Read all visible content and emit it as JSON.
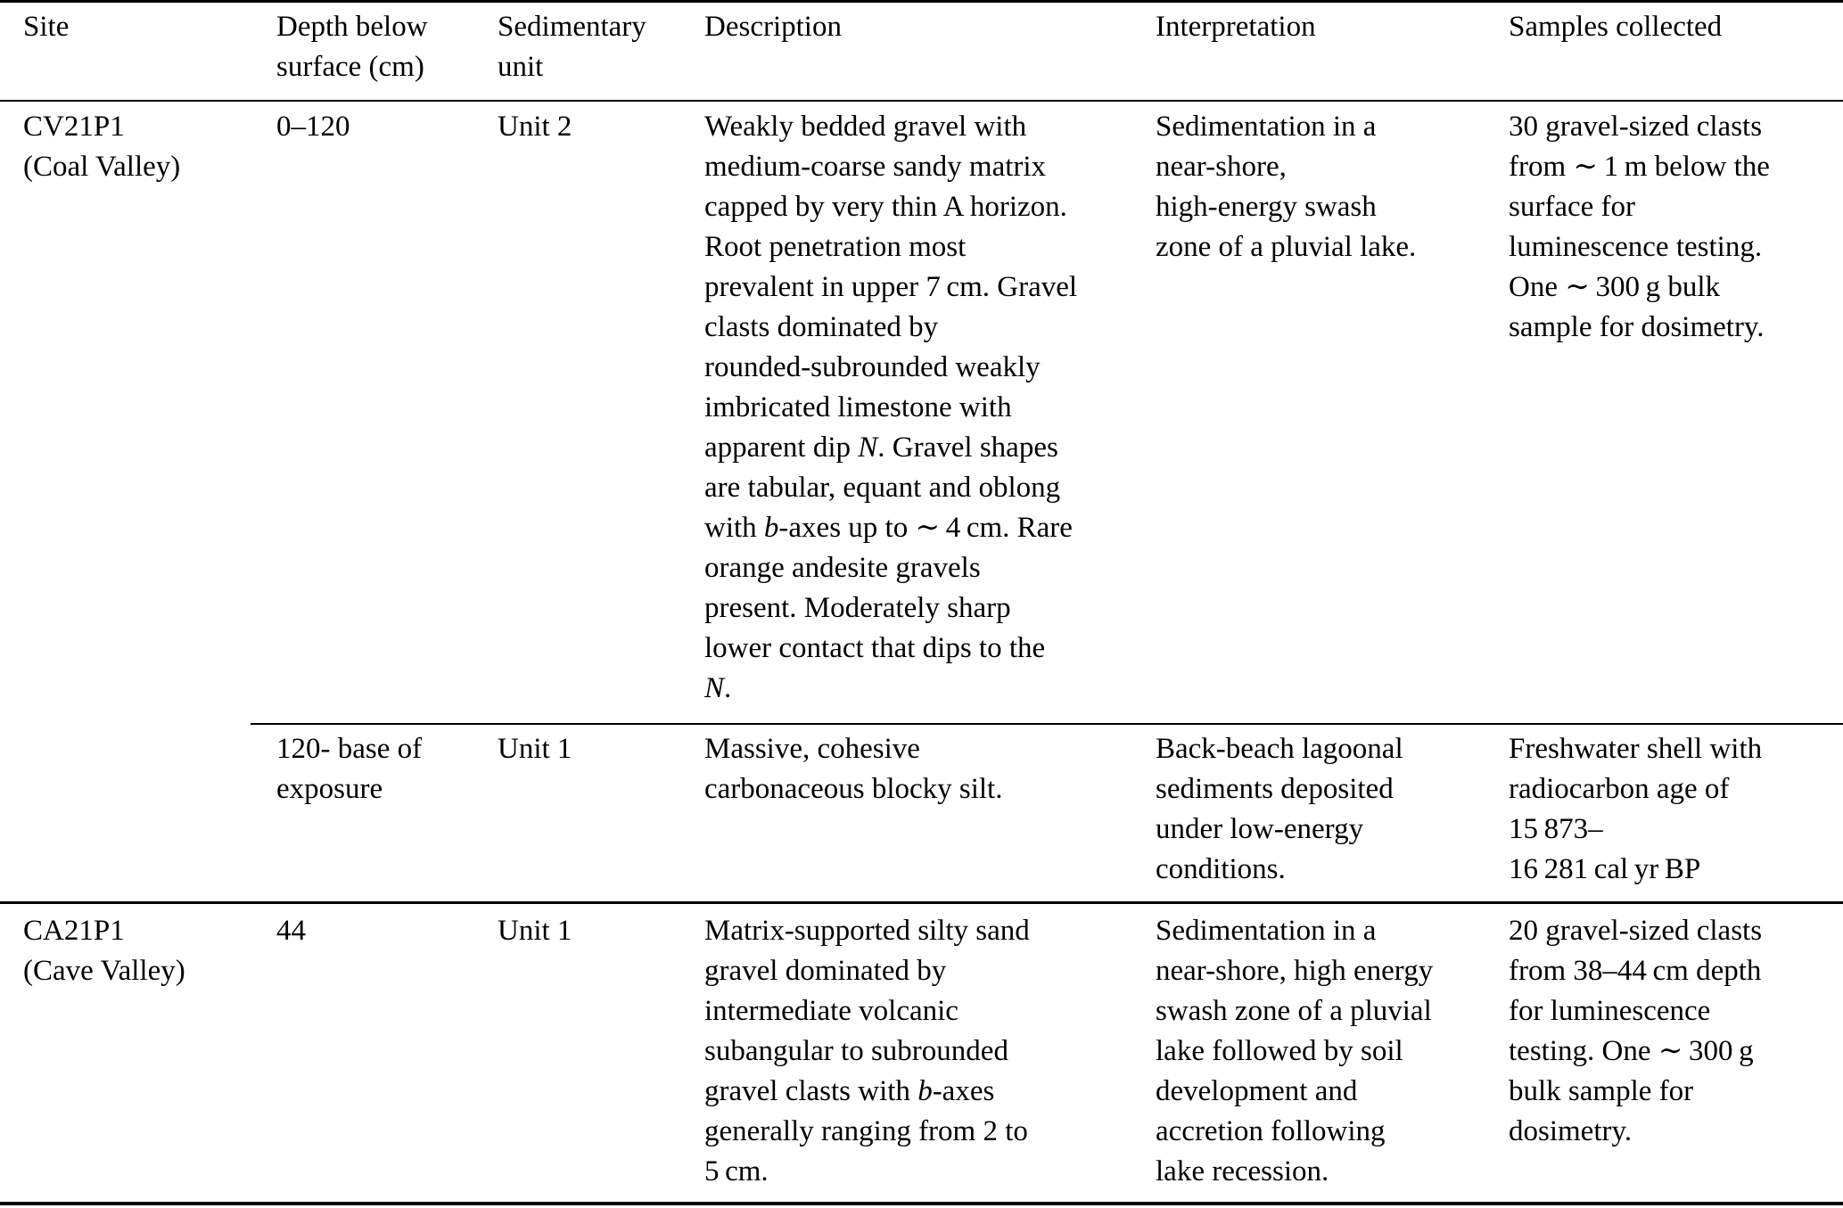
{
  "colors": {
    "background": "#ffffff",
    "text": "#000000",
    "rule": "#000000"
  },
  "header": {
    "site": "Site",
    "depth": "Depth below\nsurface (cm)",
    "unit": "Sedimentary\nunit",
    "description": "Description",
    "interpretation": "Interpretation",
    "samples": "Samples collected"
  },
  "rows": [
    {
      "site": "CV21P1\n(Coal Valley)",
      "depth": "0–120",
      "unit": "Unit 2",
      "description": "Weakly bedded gravel with\nmedium-coarse sandy matrix\ncapped by very thin A horizon.\nRoot penetration most\nprevalent in upper 7 cm. Gravel\nclasts dominated by\nrounded-subrounded weakly\nimbricated limestone with\napparent dip *N*. Gravel shapes\nare tabular, equant and oblong\nwith *b*-axes up to ∼ 4 cm. Rare\norange andesite gravels\npresent. Moderately sharp\nlower contact that dips to the\n*N*.",
      "interpretation": "Sedimentation in a\nnear-shore,\nhigh-energy swash\nzone of a pluvial lake.",
      "samples": "30 gravel-sized clasts\nfrom ∼ 1 m below the\nsurface for\nluminescence testing.\nOne ∼ 300 g bulk\nsample for dosimetry."
    },
    {
      "site": "",
      "depth": "120- base of\nexposure",
      "unit": "Unit 1",
      "description": "Massive, cohesive\ncarbonaceous blocky silt.",
      "interpretation": "Back-beach lagoonal\nsediments deposited\nunder low-energy\nconditions.",
      "samples": "Freshwater shell with\nradiocarbon age of\n15 873–\n16 281 cal yr BP"
    },
    {
      "site": "CA21P1\n(Cave Valley)",
      "depth": "44",
      "unit": "Unit 1",
      "description": "Matrix-supported silty sand\ngravel dominated by\nintermediate volcanic\nsubangular to subrounded\ngravel clasts with *b*-axes\ngenerally ranging from 2 to\n5 cm.",
      "interpretation": "Sedimentation in a\nnear-shore, high energy\nswash zone of a pluvial\nlake followed by soil\ndevelopment and\naccretion following\nlake recession.",
      "samples": "20 gravel-sized clasts\nfrom 38–44 cm depth\nfor luminescence\ntesting. One ∼ 300 g\nbulk sample for\ndosimetry."
    }
  ]
}
